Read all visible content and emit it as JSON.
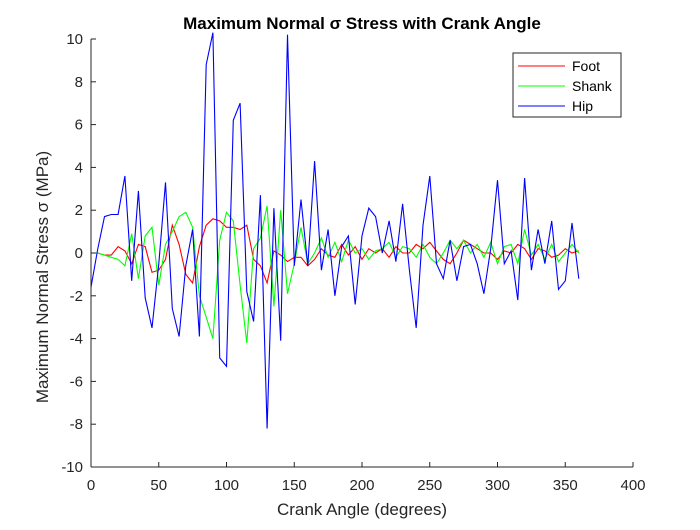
{
  "chart_data": {
    "type": "line",
    "title": "Maximum Normal σ Stress with Crank Angle",
    "xlabel": "Crank Angle (degrees)",
    "ylabel": "Maximum Normal Stress σ (MPa)",
    "xlim": [
      0,
      400
    ],
    "ylim": [
      -10,
      10
    ],
    "xticks": [
      0,
      50,
      100,
      150,
      200,
      250,
      300,
      350,
      400
    ],
    "yticks": [
      -10,
      -8,
      -6,
      -4,
      -2,
      0,
      2,
      4,
      6,
      8,
      10
    ],
    "grid": false,
    "legend_position": "top-right",
    "x": [
      0,
      5,
      10,
      15,
      20,
      25,
      30,
      35,
      40,
      45,
      50,
      55,
      60,
      65,
      70,
      75,
      80,
      85,
      90,
      95,
      100,
      105,
      110,
      115,
      120,
      125,
      130,
      135,
      140,
      145,
      150,
      155,
      160,
      165,
      170,
      175,
      180,
      185,
      190,
      195,
      200,
      205,
      210,
      215,
      220,
      225,
      230,
      235,
      240,
      245,
      250,
      255,
      260,
      265,
      270,
      275,
      280,
      285,
      290,
      295,
      300,
      305,
      310,
      315,
      320,
      325,
      330,
      335,
      340,
      345,
      350,
      355,
      360
    ],
    "series": [
      {
        "name": "Foot",
        "color": "#ff0000",
        "values": [
          0.0,
          0.0,
          -0.1,
          -0.1,
          0.3,
          0.1,
          -0.5,
          0.4,
          0.3,
          -0.9,
          -0.8,
          -0.3,
          1.3,
          0.4,
          -1.0,
          -1.4,
          0.3,
          1.3,
          1.6,
          1.5,
          1.2,
          1.2,
          1.1,
          1.3,
          -0.3,
          -0.6,
          -1.4,
          0.1,
          -0.1,
          -0.4,
          -0.2,
          -0.2,
          -0.6,
          -0.3,
          0.2,
          -0.1,
          -0.2,
          0.4,
          -0.1,
          0.3,
          -0.3,
          0.2,
          0.0,
          0.2,
          -0.2,
          0.3,
          0.0,
          0.0,
          0.4,
          0.2,
          0.5,
          0.1,
          -0.3,
          -0.5,
          0.0,
          0.6,
          0.4,
          0.2,
          0.0,
          0.0,
          -0.3,
          0.1,
          0.0,
          0.4,
          0.2,
          -0.3,
          0.2,
          0.1,
          -0.2,
          -0.1,
          0.2,
          0.0,
          0.1
        ]
      },
      {
        "name": "Shank",
        "color": "#00ff00",
        "values": [
          0.0,
          0.0,
          -0.1,
          -0.2,
          -0.3,
          -0.6,
          0.9,
          -1.2,
          0.8,
          1.2,
          -1.5,
          0.4,
          1.0,
          1.7,
          1.9,
          1.2,
          -2.0,
          -3.0,
          -4.0,
          0.6,
          1.9,
          1.5,
          -1.5,
          -4.2,
          0.2,
          0.7,
          2.2,
          -2.5,
          2.0,
          -1.9,
          -0.5,
          1.2,
          -0.5,
          0.0,
          0.7,
          -0.2,
          0.5,
          -0.4,
          0.6,
          0.0,
          0.2,
          -0.3,
          0.1,
          0.2,
          0.5,
          -0.2,
          0.3,
          0.2,
          -0.2,
          0.4,
          -0.2,
          -0.5,
          0.0,
          0.6,
          0.2,
          0.6,
          0.0,
          0.4,
          -0.2,
          0.5,
          -0.5,
          0.3,
          0.4,
          -0.5,
          1.1,
          -0.1,
          0.4,
          -0.3,
          0.4,
          -0.4,
          0.0,
          0.4,
          0.0
        ]
      },
      {
        "name": "Hip",
        "color": "#0000ff",
        "values": [
          -1.6,
          0.2,
          1.7,
          1.8,
          1.8,
          3.6,
          -1.3,
          2.9,
          -2.1,
          -3.5,
          -0.5,
          3.3,
          -2.6,
          -3.9,
          -0.6,
          1.1,
          -3.9,
          8.8,
          10.3,
          -4.9,
          -5.3,
          6.2,
          7.0,
          -1.8,
          -3.2,
          2.7,
          -8.2,
          2.1,
          -4.1,
          10.2,
          -0.6,
          2.5,
          -0.6,
          4.3,
          -0.8,
          1.1,
          -2.0,
          0.3,
          0.8,
          -2.4,
          0.8,
          2.1,
          1.7,
          0.0,
          1.5,
          -0.4,
          2.3,
          -0.8,
          -3.5,
          1.3,
          3.6,
          -0.5,
          -1.2,
          0.6,
          -1.3,
          0.3,
          0.4,
          -0.5,
          -1.9,
          0.2,
          3.4,
          -0.5,
          0.1,
          -2.2,
          3.5,
          -0.8,
          1.1,
          -0.5,
          1.5,
          -1.7,
          -1.3,
          1.4,
          -1.2
        ]
      }
    ]
  }
}
